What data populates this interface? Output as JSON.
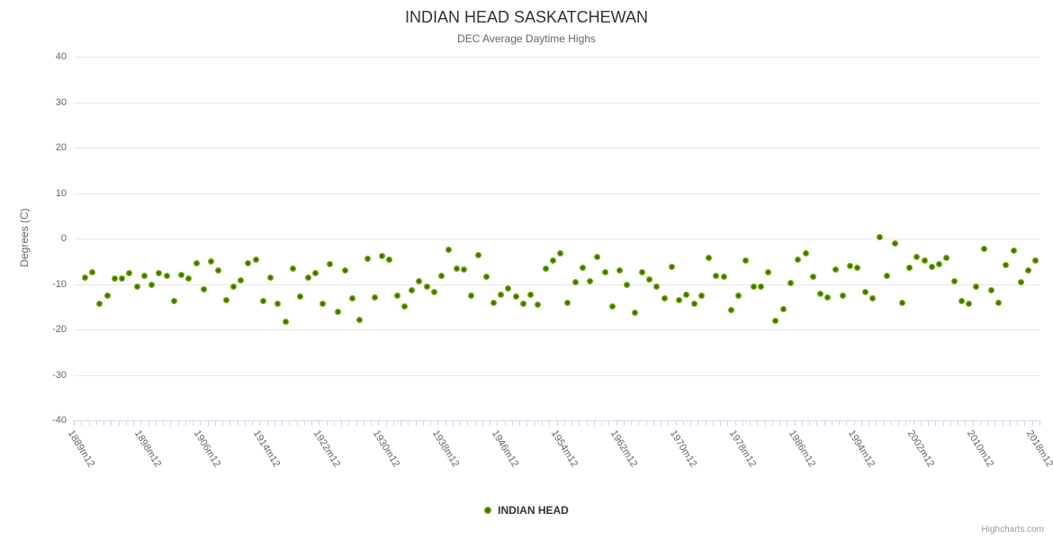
{
  "header": {
    "title": "INDIAN HEAD SASKATCHEWAN",
    "subtitle": "DEC Average Daytime Highs"
  },
  "legend": {
    "label": "INDIAN HEAD"
  },
  "credits": {
    "label": "Highcharts.com"
  },
  "colors": {
    "marker_core": "#436f02",
    "marker_mid": "#6fae08",
    "marker_edge": "#85c125",
    "grid_line": "#e6e6e6",
    "axis_line_and_ticks": "#ccd6eb",
    "title_text": "#333333",
    "muted_text": "#666666",
    "credits_text": "#999999"
  },
  "chart_data": {
    "type": "scatter",
    "title": "INDIAN HEAD SASKATCHEWAN",
    "subtitle": "DEC Average Daytime Highs",
    "xlabel": "",
    "ylabel": "Degrees (C)",
    "ylim": [
      -40,
      40
    ],
    "yticks": [
      40,
      30,
      20,
      10,
      0,
      -10,
      -20,
      -30,
      -40
    ],
    "grid": true,
    "legend_position": "bottom-center",
    "x_axis": {
      "category_start_year": 1889,
      "category_end_year": 2018,
      "label_suffix": "m12",
      "labeled_years": [
        1889,
        1898,
        1906,
        1914,
        1922,
        1930,
        1938,
        1946,
        1954,
        1962,
        1970,
        1978,
        1986,
        1994,
        2002,
        2010,
        2018
      ]
    },
    "series": [
      {
        "name": "INDIAN HEAD",
        "color": "#6fae08",
        "start_year": 1890,
        "values": [
          -8.6,
          -7.4,
          -14.4,
          -12.5,
          -8.8,
          -8.9,
          -7.7,
          -10.6,
          -8.3,
          -10.2,
          -7.7,
          -8.3,
          -13.8,
          -8.0,
          -8.8,
          -5.4,
          -11.1,
          -5.1,
          -7.1,
          -13.5,
          -10.5,
          -9.2,
          -5.5,
          -4.7,
          -13.8,
          -8.7,
          -14.3,
          -18.4,
          -6.7,
          -12.7,
          -8.7,
          -7.7,
          -14.3,
          -5.7,
          -16.1,
          -7.1,
          -13.1,
          -18.0,
          -4.4,
          -12.9,
          -3.8,
          -4.7,
          -12.5,
          -14.9,
          -11.3,
          -9.4,
          -10.6,
          -11.7,
          -8.2,
          -2.4,
          -6.6,
          -6.9,
          -12.5,
          -3.6,
          -8.5,
          -14.1,
          -12.3,
          -11.0,
          -12.7,
          -14.3,
          -12.3,
          -14.5,
          -6.6,
          -4.8,
          -3.3,
          -14.1,
          -9.7,
          -6.5,
          -9.4,
          -4.0,
          -7.4,
          -15.0,
          -7.0,
          -10.2,
          -16.4,
          -7.4,
          -9.0,
          -10.6,
          -13.1,
          -6.2,
          -13.5,
          -12.3,
          -14.3,
          -12.6,
          -4.2,
          -8.2,
          -8.5,
          -15.8,
          -12.5,
          -4.9,
          -10.6,
          -10.6,
          -7.5,
          -18.1,
          -15.6,
          -9.8,
          -4.6,
          -3.2,
          -8.5,
          -12.1,
          -13.0,
          -6.9,
          -12.5,
          -6.0,
          -6.5,
          -11.8,
          -13.1,
          0.2,
          -8.3,
          -1.0,
          -14.1,
          -6.5,
          -4.1,
          -4.8,
          -6.3,
          -5.6,
          -4.3,
          -9.4,
          -13.7,
          -14.3,
          -10.6,
          -2.2,
          -11.3,
          -14.1,
          -5.9,
          -2.7,
          -9.7,
          -7.1,
          -4.9
        ]
      }
    ]
  }
}
